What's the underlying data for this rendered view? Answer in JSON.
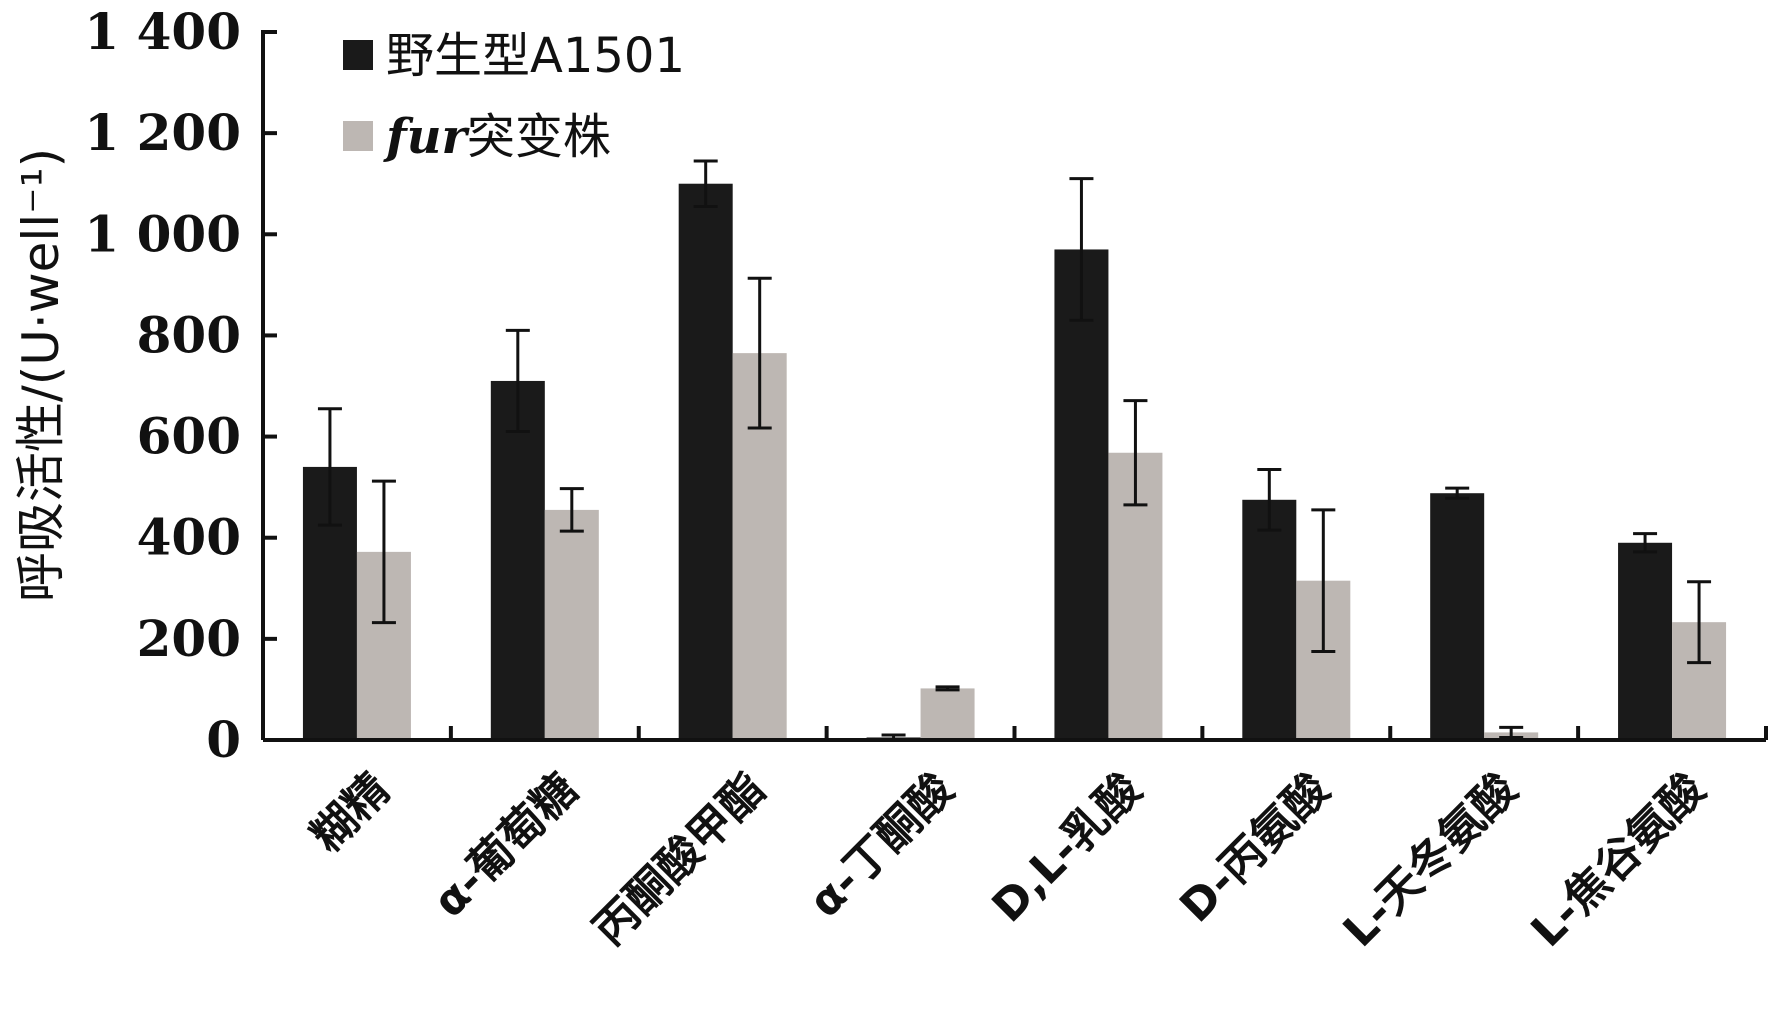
{
  "chart_data": {
    "type": "bar",
    "ylabel": "呼吸活性/(U·well⁻¹)",
    "ylim": [
      0,
      1400
    ],
    "yticks": [
      0,
      200,
      400,
      600,
      800,
      1000,
      1200,
      1400
    ],
    "ytick_labels": [
      "0",
      "200",
      "400",
      "600",
      "800",
      "1 000",
      "1 200",
      "1 400"
    ],
    "categories": [
      "糊精",
      "α-葡萄糖",
      "丙酮酸甲酯",
      "α-丁酮酸",
      "D,L-乳酸",
      "D-丙氨酸",
      "L-天冬氨酸",
      "L-焦谷氨酸"
    ],
    "series": [
      {
        "name": "野生型A1501",
        "color": "#1a1a1a",
        "values": [
          540,
          710,
          1100,
          5,
          970,
          475,
          488,
          390
        ],
        "errors": [
          115,
          100,
          45,
          5,
          140,
          60,
          10,
          18
        ]
      },
      {
        "name_italic": "fur",
        "name_rest": "突变株",
        "color": "#bdb7b3",
        "values": [
          372,
          455,
          765,
          102,
          568,
          315,
          15,
          233
        ],
        "errors": [
          140,
          42,
          148,
          3,
          103,
          140,
          10,
          80
        ]
      }
    ],
    "legend_position": "top-left",
    "grid": false
  }
}
